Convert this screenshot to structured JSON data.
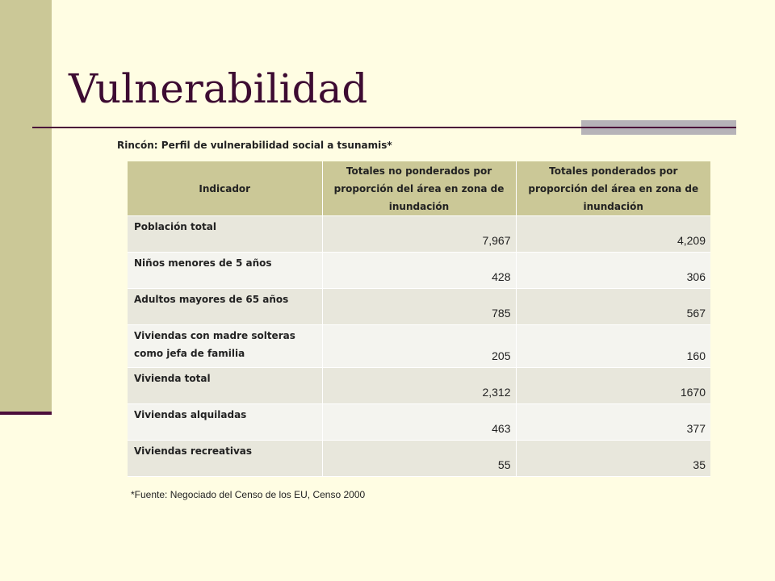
{
  "slide": {
    "title": "Vulnerabilidad",
    "subtitle": "Rincón: Perfil de vulnerabilidad social a tsunamis*",
    "footnote": "*Fuente: Negociado del Censo de los EU, Censo 2000",
    "colors": {
      "background": "#fffde3",
      "accent_bar": "#cbc897",
      "title": "#3d0b32",
      "rule": "#4b0d3a"
    }
  },
  "table": {
    "headers": [
      "Indicador",
      "Totales no ponderados por proporción del área en zona de inundación",
      "Totales ponderados por proporción del área en zona de inundación"
    ],
    "rows": [
      {
        "indicator": "Población total",
        "unweighted": "7,967",
        "weighted": "4,209"
      },
      {
        "indicator": "Niños menores de 5 años",
        "unweighted": "428",
        "weighted": "306"
      },
      {
        "indicator": "Adultos mayores de 65 años",
        "unweighted": "785",
        "weighted": "567"
      },
      {
        "indicator": "Viviendas con madre solteras como jefa de familia",
        "unweighted": "205",
        "weighted": "160"
      },
      {
        "indicator": "Vivienda total",
        "unweighted": "2,312",
        "weighted": "1670"
      },
      {
        "indicator": "Viviendas alquiladas",
        "unweighted": "463",
        "weighted": "377"
      },
      {
        "indicator": "Viviendas recreativas",
        "unweighted": "55",
        "weighted": "35"
      }
    ]
  }
}
